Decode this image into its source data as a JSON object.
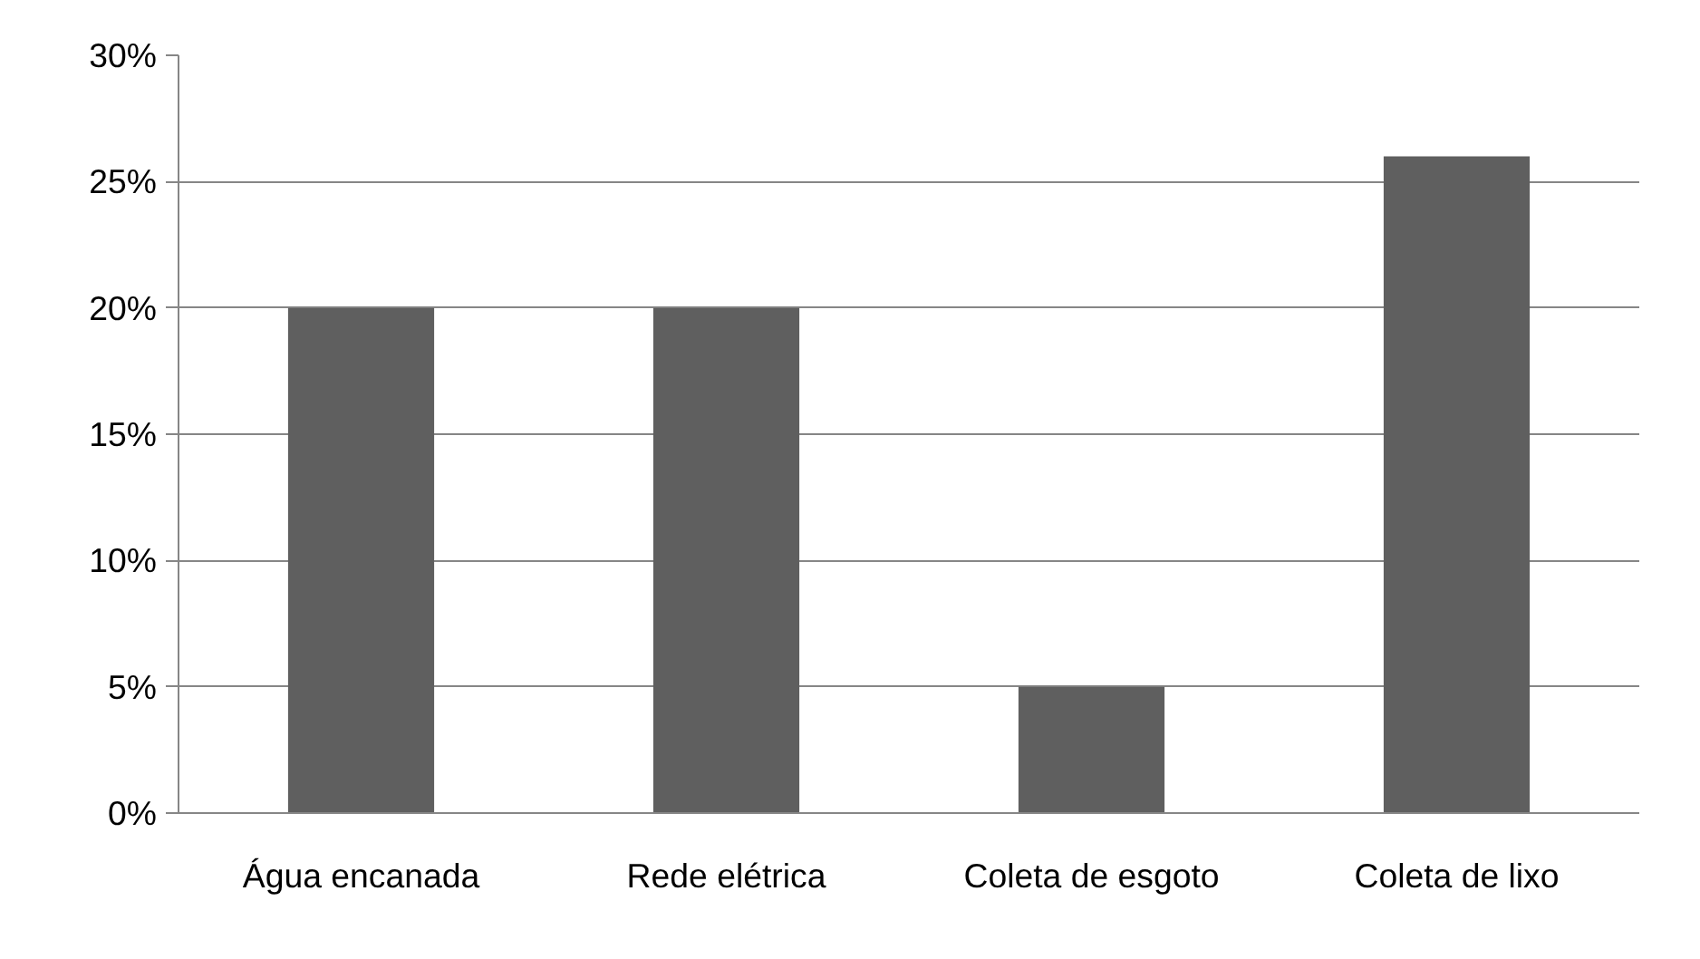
{
  "chart_data": {
    "type": "bar",
    "categories": [
      "Água encanada",
      "Rede elétrica",
      "Coleta de esgoto",
      "Coleta de lixo"
    ],
    "values": [
      20,
      20,
      5,
      26
    ],
    "color": "#5f5f5f",
    "ylim": [
      0,
      30
    ],
    "yticks": [
      {
        "value": 0,
        "label": "0%"
      },
      {
        "value": 5,
        "label": "5%"
      },
      {
        "value": 10,
        "label": "10%"
      },
      {
        "value": 15,
        "label": "15%"
      },
      {
        "value": 20,
        "label": "20%"
      },
      {
        "value": 25,
        "label": "25%"
      },
      {
        "value": 30,
        "label": "30%"
      }
    ],
    "grid": "y"
  }
}
